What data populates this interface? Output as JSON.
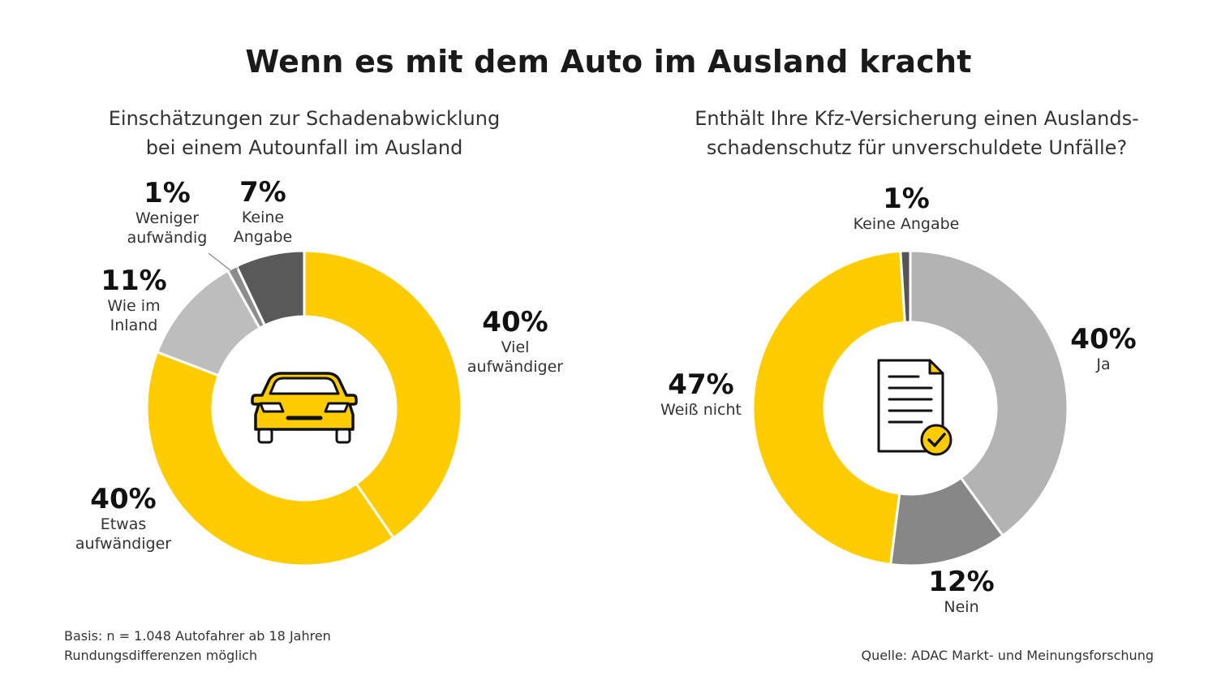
{
  "title": "Wenn es mit dem Auto im Ausland kracht",
  "chart_data": [
    {
      "type": "pie",
      "title_lines": [
        "Einschätzungen zur Schadenabwicklung",
        "bei einem Autounfall im Ausland"
      ],
      "slices": [
        {
          "label_lines": [
            "Viel",
            "aufwändiger"
          ],
          "value": 40,
          "value_label": "40%",
          "color": "#FFCC00"
        },
        {
          "label_lines": [
            "Etwas",
            "aufwändiger"
          ],
          "value": 40,
          "value_label": "40%",
          "color": "#FFCC00"
        },
        {
          "label_lines": [
            "Wie im",
            "Inland"
          ],
          "value": 11,
          "value_label": "11%",
          "color": "#BDBDBD"
        },
        {
          "label_lines": [
            "Weniger",
            "aufwändig"
          ],
          "value": 1,
          "value_label": "1%",
          "color": "#8C8C8C"
        },
        {
          "label_lines": [
            "Keine",
            "Angabe"
          ],
          "value": 7,
          "value_label": "7%",
          "color": "#595959"
        }
      ],
      "center_icon": "car-icon"
    },
    {
      "type": "pie",
      "title_lines": [
        "Enthält Ihre Kfz-Versicherung einen Auslands-",
        "schadenschutz für unverschuldete Unfälle?"
      ],
      "slices": [
        {
          "label_lines": [
            "Ja"
          ],
          "value": 40,
          "value_label": "40%",
          "color": "#B3B3B3"
        },
        {
          "label_lines": [
            "Nein"
          ],
          "value": 12,
          "value_label": "12%",
          "color": "#878787"
        },
        {
          "label_lines": [
            "Weiß nicht"
          ],
          "value": 47,
          "value_label": "47%",
          "color": "#FFCC00"
        },
        {
          "label_lines": [
            "Keine Angabe"
          ],
          "value": 1,
          "value_label": "1%",
          "color": "#555555"
        }
      ],
      "center_icon": "document-check-icon"
    }
  ],
  "footnote_left": [
    "Basis: n = 1.048 Autofahrer ab 18 Jahren",
    "Rundungsdifferenzen möglich"
  ],
  "footnote_right": "Quelle: ADAC Markt- und Meinungsforschung"
}
